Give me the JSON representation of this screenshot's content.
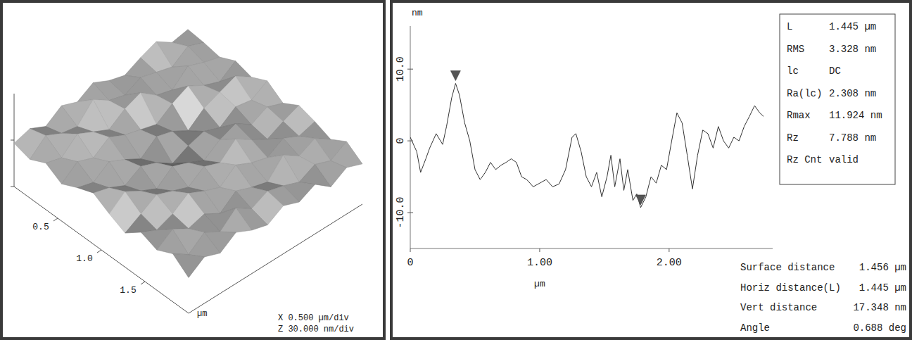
{
  "chart_data": [
    {
      "type": "surface3d",
      "x_label": "µm",
      "xlim": [
        0,
        2
      ],
      "ylim": [
        0,
        2
      ],
      "zlim": [
        0,
        60
      ],
      "xticks": [
        0.5,
        {
          "value": 1,
          "label": "1.0"
        },
        1.5
      ],
      "zticks": [
        0,
        30
      ],
      "tick_labels": "x",
      "scale_labels": [
        "X 0.500 µm/div",
        "Z 30.000 nm/div"
      ],
      "heights": [
        [
          28,
          31,
          26,
          33,
          29,
          35,
          30,
          27,
          32,
          36,
          29,
          31
        ],
        [
          25,
          34,
          29,
          27,
          38,
          31,
          28,
          33,
          30,
          27,
          34,
          30
        ],
        [
          30,
          27,
          36,
          31,
          26,
          33,
          37,
          29,
          26,
          35,
          31,
          28
        ],
        [
          24,
          32,
          28,
          35,
          30,
          27,
          24,
          31,
          36,
          30,
          26,
          33
        ],
        [
          29,
          26,
          33,
          28,
          22,
          30,
          27,
          21,
          29,
          33,
          37,
          30
        ],
        [
          33,
          30,
          25,
          31,
          27,
          20,
          25,
          28,
          24,
          31,
          29,
          35
        ],
        [
          27,
          35,
          29,
          24,
          32,
          28,
          23,
          30,
          34,
          27,
          32,
          28
        ],
        [
          22,
          28,
          34,
          30,
          26,
          33,
          29,
          38,
          31,
          25,
          30,
          34
        ],
        [
          30,
          25,
          29,
          36,
          31,
          27,
          35,
          30,
          27,
          33,
          28,
          31
        ],
        [
          26,
          33,
          27,
          30,
          24,
          32,
          28,
          25,
          36,
          29,
          34,
          27
        ],
        [
          31,
          24,
          32,
          26,
          35,
          28,
          33,
          30,
          26,
          31,
          27,
          33
        ],
        [
          23,
          30,
          26,
          33,
          28,
          25,
          31,
          27,
          32,
          24,
          30,
          26
        ]
      ]
    },
    {
      "type": "line",
      "x_label": "µm",
      "y_label": "nm",
      "color": "#333333",
      "xlim": [
        0,
        2.8
      ],
      "ylim": [
        -15,
        16
      ],
      "xticks": [
        0,
        {
          "value": 1,
          "label": "1.00"
        },
        {
          "value": 2,
          "label": "2.00"
        }
      ],
      "yticks": [
        {
          "value": -10,
          "label": "-10.0"
        },
        0,
        {
          "value": 10,
          "label": "10.0"
        }
      ],
      "x": [
        0,
        0.05,
        0.08,
        0.12,
        0.15,
        0.2,
        0.25,
        0.28,
        0.32,
        0.35,
        0.38,
        0.42,
        0.46,
        0.5,
        0.54,
        0.58,
        0.62,
        0.66,
        0.7,
        0.74,
        0.78,
        0.82,
        0.86,
        0.9,
        0.95,
        1.0,
        1.05,
        1.1,
        1.15,
        1.2,
        1.25,
        1.28,
        1.32,
        1.36,
        1.4,
        1.44,
        1.48,
        1.52,
        1.55,
        1.58,
        1.62,
        1.65,
        1.68,
        1.72,
        1.75,
        1.78,
        1.82,
        1.86,
        1.9,
        1.94,
        1.98,
        2.02,
        2.06,
        2.1,
        2.14,
        2.18,
        2.22,
        2.26,
        2.3,
        2.34,
        2.38,
        2.42,
        2.46,
        2.5,
        2.54,
        2.58,
        2.62,
        2.66,
        2.7,
        2.73
      ],
      "values": [
        0.5,
        -1.5,
        -4.4,
        -2.5,
        -1,
        1,
        -0.5,
        2,
        6,
        8,
        6.4,
        2.5,
        0,
        -4,
        -5.4,
        -4.4,
        -3,
        -4,
        -3.4,
        -3,
        -2.5,
        -3,
        -5,
        -5.4,
        -6.4,
        -5.9,
        -5.4,
        -6.4,
        -6,
        -4,
        0.5,
        1,
        -1.5,
        -5,
        -6.4,
        -4.4,
        -7.8,
        -5,
        -2,
        -6.4,
        -2.5,
        -6.9,
        -4,
        -8.3,
        -7.4,
        -9.3,
        -7.8,
        -5,
        -5.9,
        -3.4,
        -4,
        0,
        3.9,
        2.5,
        -2,
        -6.7,
        -2,
        1.5,
        1,
        -1,
        2,
        0,
        -1,
        0.5,
        0,
        2,
        3.4,
        4.9,
        3.9,
        3.4
      ],
      "markers": [
        {
          "x": 0.35,
          "y": 8
        },
        {
          "x": 1.78,
          "y": -9.3
        }
      ],
      "stats": [
        {
          "label": "L",
          "value": "1.445 µm"
        },
        {
          "label": "RMS",
          "value": "3.328 nm"
        },
        {
          "label": "lc",
          "value": "DC"
        },
        {
          "label": "Ra(lc)",
          "value": "2.308 nm"
        },
        {
          "label": "Rmax",
          "value": "11.924 nm"
        },
        {
          "label": "Rz",
          "value": "7.788 nm"
        },
        {
          "label": "Rz Cnt",
          "value": "valid"
        }
      ],
      "measurements": [
        {
          "label": "Surface distance",
          "value": "1.456 µm"
        },
        {
          "label": "Horiz distance(L)",
          "value": "1.445 µm"
        },
        {
          "label": "Vert distance",
          "value": "17.348 nm"
        },
        {
          "label": "Angle",
          "value": "0.688 deg"
        }
      ]
    }
  ]
}
